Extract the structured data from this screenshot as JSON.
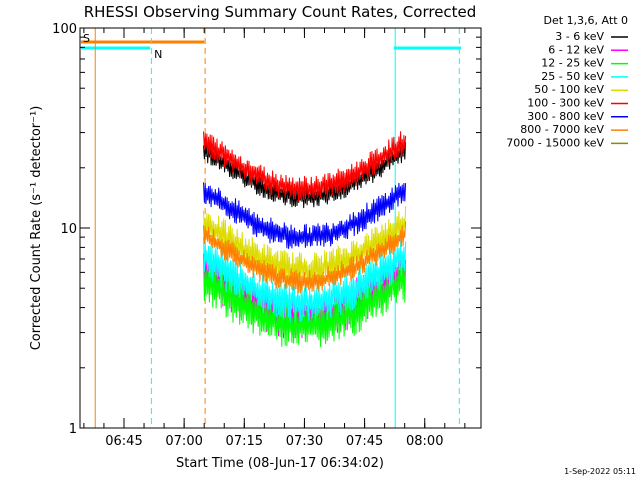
{
  "chart_data": {
    "type": "line",
    "title": "RHESSI Observing Summary Count Rates, Corrected",
    "xlabel": "Start Time (08-Jun-17 06:34:02)",
    "ylabel": "Corrected Count Rate (s⁻¹ detector⁻¹)",
    "yscale": "log",
    "ylim": [
      1,
      100
    ],
    "y_ticks": [
      "1",
      "10",
      "100"
    ],
    "xlim_minutes_after_start": [
      0,
      100
    ],
    "x_ticks": [
      {
        "label": "06:45",
        "minute": 10.97
      },
      {
        "label": "07:00",
        "minute": 25.97
      },
      {
        "label": "07:15",
        "minute": 40.97
      },
      {
        "label": "07:30",
        "minute": 55.97
      },
      {
        "label": "07:45",
        "minute": 70.97
      },
      {
        "label": "08:00",
        "minute": 85.97
      }
    ],
    "legend_header": "Det 1,3,6, Att 0",
    "legend_position": "top-right",
    "data_interval_minutes": [
      30.8,
      81.2
    ],
    "series": [
      {
        "name": "3 - 6 keV",
        "color": "#000000",
        "level": 19,
        "noise": 0.09
      },
      {
        "name": "6 - 12 keV",
        "color": "#ff00ff",
        "level": 4.8,
        "noise": 0.2
      },
      {
        "name": "12 - 25 keV",
        "color": "#00ff00",
        "level": 4.3,
        "noise": 0.2
      },
      {
        "name": "25 - 50 keV",
        "color": "#00ffff",
        "level": 5.6,
        "noise": 0.17
      },
      {
        "name": "50 - 100 keV",
        "color": "#dcdc00",
        "level": 8.2,
        "noise": 0.15
      },
      {
        "name": "100 - 300 keV",
        "color": "#ff0000",
        "level": 21,
        "noise": 0.11
      },
      {
        "name": "300 - 800 keV",
        "color": "#0000ff",
        "level": 12,
        "noise": 0.11
      },
      {
        "name": "800 - 7000 keV",
        "color": "#ff8000",
        "level": 7.2,
        "noise": 0.1
      },
      {
        "name": "7000 - 15000 keV",
        "color": "#8b8b00",
        "level": null,
        "noise": 0
      }
    ],
    "flags": [
      {
        "label": "S",
        "color": "#ff8000",
        "start": 0,
        "end": 31
      },
      {
        "label": "N",
        "color": "#00ffff",
        "start": 0,
        "end": 17.5
      },
      {
        "label": "",
        "color": "#00ffff",
        "start": 78,
        "end": 95
      }
    ],
    "vlines": [
      {
        "minute": 0,
        "color": "#00ffff",
        "style": "solid"
      },
      {
        "minute": 3.8,
        "color": "#ff8000",
        "style": "solid"
      },
      {
        "minute": 17.8,
        "color": "#00ffff",
        "style": "dashed"
      },
      {
        "minute": 31.2,
        "color": "#ff8000",
        "style": "dashed"
      },
      {
        "minute": 78.6,
        "color": "#00ffff",
        "style": "solid"
      },
      {
        "minute": 94.6,
        "color": "#00ffff",
        "style": "dashed"
      }
    ]
  },
  "footer": {
    "timestamp": "1-Sep-2022 05:11"
  }
}
